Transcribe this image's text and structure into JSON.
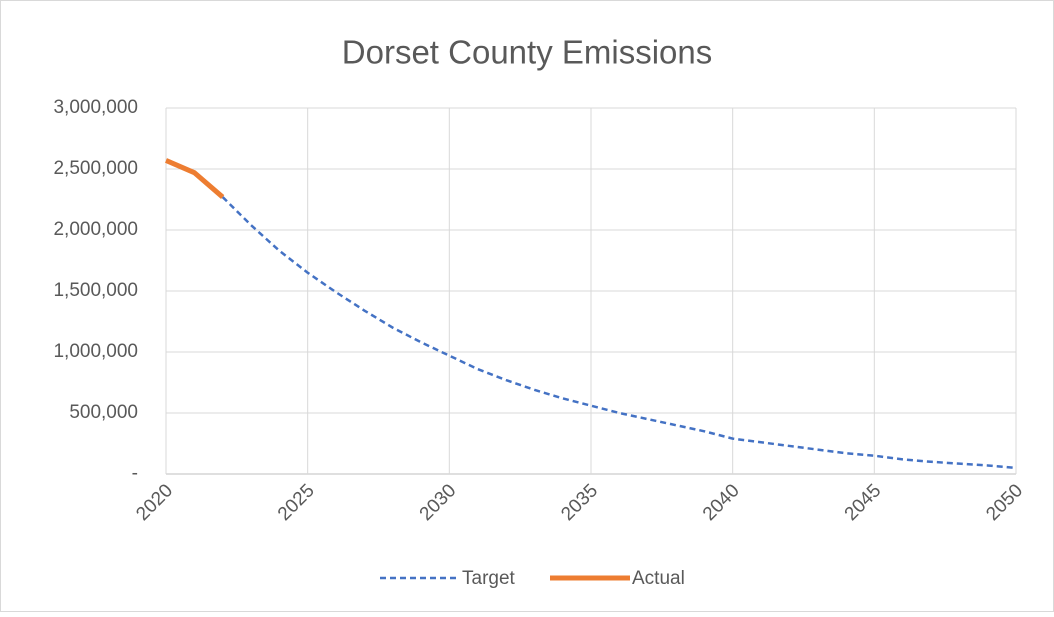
{
  "chart_data": {
    "type": "line",
    "title": "Dorset County Emissions",
    "x": [
      2020,
      2021,
      2022,
      2023,
      2024,
      2025,
      2026,
      2027,
      2028,
      2029,
      2030,
      2031,
      2032,
      2033,
      2034,
      2035,
      2036,
      2037,
      2038,
      2039,
      2040,
      2041,
      2042,
      2043,
      2044,
      2045,
      2046,
      2047,
      2048,
      2049,
      2050
    ],
    "series": [
      {
        "name": "Target",
        "color": "#4472c4",
        "dash": true,
        "values": [
          null,
          null,
          2270000,
          2040000,
          1830000,
          1650000,
          1490000,
          1340000,
          1200000,
          1080000,
          970000,
          860000,
          770000,
          690000,
          620000,
          560000,
          500000,
          450000,
          400000,
          350000,
          290000,
          260000,
          230000,
          200000,
          170000,
          150000,
          120000,
          100000,
          85000,
          70000,
          50000
        ]
      },
      {
        "name": "Actual",
        "color": "#ed7d31",
        "dash": false,
        "values": [
          2570000,
          2470000,
          2270000,
          null,
          null,
          null,
          null,
          null,
          null,
          null,
          null,
          null,
          null,
          null,
          null,
          null,
          null,
          null,
          null,
          null,
          null,
          null,
          null,
          null,
          null,
          null,
          null,
          null,
          null,
          null,
          null
        ]
      }
    ],
    "xlim": [
      2020,
      2050
    ],
    "xticks": [
      2020,
      2025,
      2030,
      2035,
      2040,
      2045,
      2050
    ],
    "ylim": [
      0,
      3000000
    ],
    "yticks": [
      {
        "value": 0,
        "label": "-"
      },
      {
        "value": 500000,
        "label": "500,000"
      },
      {
        "value": 1000000,
        "label": "1,000,000"
      },
      {
        "value": 1500000,
        "label": "1,500,000"
      },
      {
        "value": 2000000,
        "label": "2,000,000"
      },
      {
        "value": 2500000,
        "label": "2,500,000"
      },
      {
        "value": 3000000,
        "label": "3,000,000"
      }
    ],
    "grid": true,
    "legend": "bottom"
  }
}
